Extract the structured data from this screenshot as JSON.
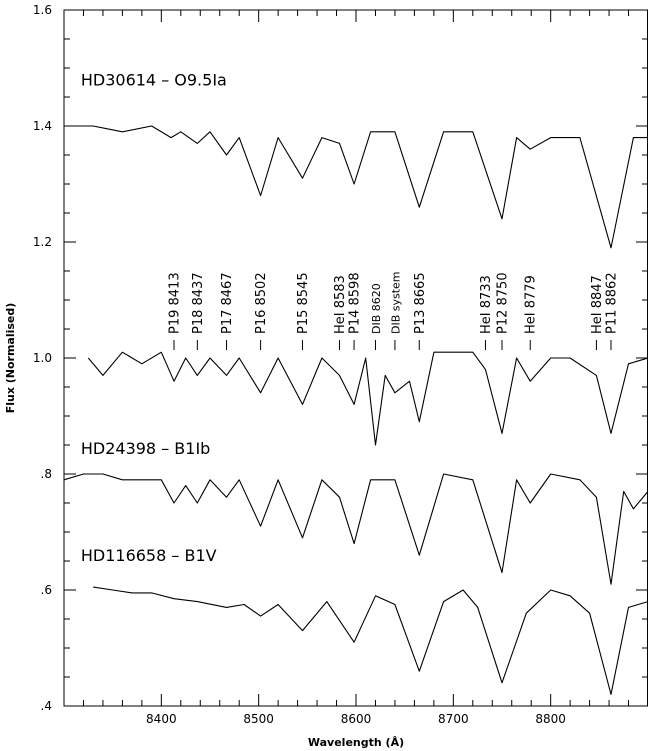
{
  "chart_data": {
    "type": "line",
    "title": "",
    "xlabel": "Wavelength (Å)",
    "ylabel": "Flux (Normalised)",
    "xlim": [
      8300,
      8900
    ],
    "ylim": [
      0.4,
      1.6
    ],
    "x_ticks": [
      8400,
      8500,
      8600,
      8700,
      8800
    ],
    "y_ticks": [
      {
        "value": 0.4,
        "label": ".4"
      },
      {
        "value": 0.6,
        "label": ".6"
      },
      {
        "value": 0.8,
        "label": ".8"
      },
      {
        "value": 1.0,
        "label": "1.0"
      },
      {
        "value": 1.2,
        "label": "1.2"
      },
      {
        "value": 1.4,
        "label": "1.4"
      },
      {
        "value": 1.6,
        "label": "1.6"
      }
    ],
    "star_labels": [
      {
        "text": "HD30614  –  O9.5Ia",
        "x": 8305,
        "y": 1.48
      },
      {
        "text": "HD24398  –  B1Ib",
        "x": 8305,
        "y": 0.845
      },
      {
        "text": "HD116658  –  B1V",
        "x": 8305,
        "y": 0.66
      }
    ],
    "line_ids": [
      {
        "text": "P19  8413",
        "x": 8413
      },
      {
        "text": "P18  8437",
        "x": 8437
      },
      {
        "text": "P17  8467",
        "x": 8467
      },
      {
        "text": "P16  8502",
        "x": 8502
      },
      {
        "text": "P15  8545",
        "x": 8545
      },
      {
        "text": "HeI  8583",
        "x": 8583
      },
      {
        "text": "P14  8598",
        "x": 8598
      },
      {
        "text": "DIB  8620",
        "x": 8620,
        "small": true
      },
      {
        "text": "DIB  system",
        "x": 8640,
        "small": true
      },
      {
        "text": "P13  8665",
        "x": 8665
      },
      {
        "text": "HeI  8733",
        "x": 8733
      },
      {
        "text": "P12  8750",
        "x": 8750
      },
      {
        "text": "HeI  8779",
        "x": 8779
      },
      {
        "text": "HeI  8847",
        "x": 8847
      },
      {
        "text": "P11  8862",
        "x": 8862
      }
    ],
    "series": [
      {
        "x": [
          8300,
          8330,
          8360,
          8390,
          8410,
          8420,
          8437,
          8450,
          8467,
          8480,
          8502,
          8520,
          8545,
          8565,
          8583,
          8598,
          8615,
          8640,
          8665,
          8690,
          8720,
          8750,
          8765,
          8779,
          8800,
          8830,
          8862,
          8885,
          8900
        ],
        "y": [
          1.4,
          1.4,
          1.39,
          1.4,
          1.38,
          1.39,
          1.37,
          1.39,
          1.35,
          1.38,
          1.28,
          1.38,
          1.31,
          1.38,
          1.37,
          1.3,
          1.39,
          1.39,
          1.26,
          1.39,
          1.39,
          1.24,
          1.38,
          1.36,
          1.38,
          1.38,
          1.19,
          1.38,
          1.38
        ]
      },
      {
        "x": [
          8325,
          8340,
          8360,
          8380,
          8400,
          8413,
          8425,
          8437,
          8450,
          8467,
          8480,
          8502,
          8520,
          8545,
          8565,
          8583,
          8598,
          8610,
          8620,
          8630,
          8640,
          8655,
          8665,
          8680,
          8700,
          8720,
          8733,
          8750,
          8765,
          8779,
          8800,
          8820,
          8847,
          8862,
          8880,
          8900
        ],
        "y": [
          1.0,
          0.97,
          1.01,
          0.99,
          1.01,
          0.96,
          1.0,
          0.97,
          1.0,
          0.97,
          1.0,
          0.94,
          1.0,
          0.92,
          1.0,
          0.97,
          0.92,
          1.0,
          0.85,
          0.97,
          0.94,
          0.96,
          0.89,
          1.01,
          1.01,
          1.01,
          0.98,
          0.87,
          1.0,
          0.96,
          1.0,
          1.0,
          0.97,
          0.87,
          0.99,
          1.0
        ]
      },
      {
        "x": [
          8300,
          8320,
          8340,
          8360,
          8380,
          8400,
          8413,
          8425,
          8437,
          8450,
          8467,
          8480,
          8502,
          8520,
          8545,
          8565,
          8583,
          8598,
          8615,
          8640,
          8665,
          8690,
          8720,
          8750,
          8765,
          8779,
          8800,
          8830,
          8847,
          8862,
          8875,
          8885,
          8900
        ],
        "y": [
          0.79,
          0.8,
          0.8,
          0.79,
          0.79,
          0.79,
          0.75,
          0.78,
          0.75,
          0.79,
          0.76,
          0.79,
          0.71,
          0.79,
          0.69,
          0.79,
          0.76,
          0.68,
          0.79,
          0.79,
          0.66,
          0.8,
          0.79,
          0.63,
          0.79,
          0.75,
          0.8,
          0.79,
          0.76,
          0.61,
          0.77,
          0.74,
          0.77
        ]
      },
      {
        "x": [
          8330,
          8350,
          8370,
          8390,
          8413,
          8437,
          8467,
          8485,
          8502,
          8520,
          8545,
          8570,
          8598,
          8620,
          8640,
          8665,
          8690,
          8710,
          8725,
          8750,
          8775,
          8800,
          8820,
          8840,
          8862,
          8880,
          8900
        ],
        "y": [
          0.605,
          0.6,
          0.595,
          0.595,
          0.585,
          0.58,
          0.57,
          0.575,
          0.555,
          0.575,
          0.53,
          0.58,
          0.51,
          0.59,
          0.575,
          0.46,
          0.58,
          0.6,
          0.57,
          0.44,
          0.56,
          0.6,
          0.59,
          0.56,
          0.42,
          0.57,
          0.58
        ]
      }
    ],
    "grid": false
  }
}
